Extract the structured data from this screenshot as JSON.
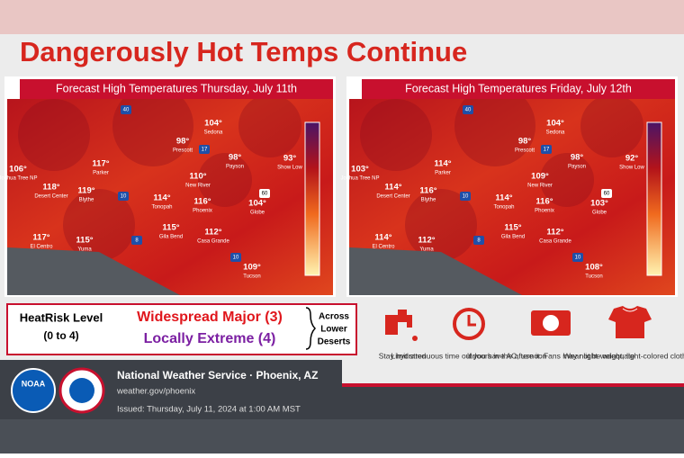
{
  "header": {
    "title": "Dangerously Hot Temps Continue"
  },
  "cities": [
    "Joshua Tree NP",
    "Desert Center",
    "Parker",
    "Blythe",
    "Prescott",
    "Sedona",
    "Payson",
    "Show Low",
    "New River",
    "Tonopah",
    "Phoenix",
    "Globe",
    "El Centro",
    "Yuma",
    "Gila Bend",
    "Casa Grande",
    "Tucson"
  ],
  "maps": [
    {
      "heading": "Forecast High Temperatures Thursday, July 11th",
      "temps": [
        "106°",
        "118°",
        "117°",
        "119°",
        "98°",
        "104°",
        "98°",
        "93°",
        "110°",
        "114°",
        "116°",
        "104°",
        "117°",
        "115°",
        "115°",
        "112°",
        "109°"
      ]
    },
    {
      "heading": "Forecast High Temperatures Friday, July 12th",
      "temps": [
        "103°",
        "114°",
        "114°",
        "116°",
        "98°",
        "104°",
        "98°",
        "92°",
        "109°",
        "114°",
        "116°",
        "103°",
        "114°",
        "112°",
        "115°",
        "112°",
        "108°"
      ]
    }
  ],
  "shields": [
    "40",
    "17",
    "10",
    "8",
    "60",
    "10"
  ],
  "heatrisk": {
    "label": "HeatRisk Level",
    "range": "(0 to 4)",
    "major": "Widespread Major (3)",
    "extreme": "Locally Extreme (4)",
    "area": [
      "Across",
      "Lower",
      "Deserts"
    ]
  },
  "tips": [
    "Stay hydrated",
    "Limit strenuous time outdoors in the afternoon",
    "If you have AC, use it. Fans may not be adequate",
    "Wear light-weight, light-colored clothing"
  ],
  "footer": {
    "org": "National Weather Service · Phoenix, AZ",
    "url": "weather.gov/phoenix",
    "issued": "Issued: Thursday, July 11, 2024 at 1:00 AM MST",
    "logo": "NOAA"
  }
}
